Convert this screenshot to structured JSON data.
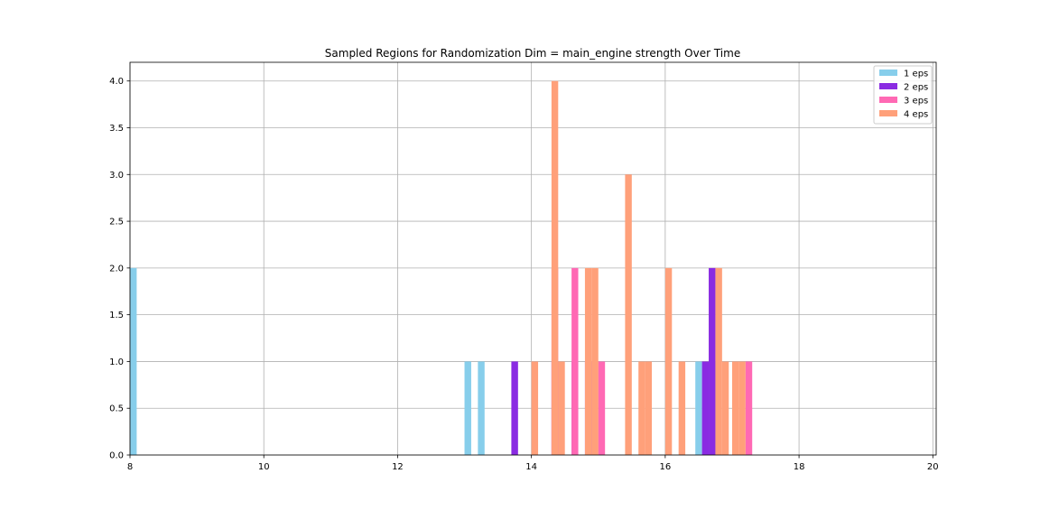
{
  "chart_data": {
    "type": "bar",
    "title": "Sampled Regions for Randomization Dim = main_engine strength Over Time",
    "xlabel": "",
    "ylabel": "",
    "xlim": [
      8,
      20.05
    ],
    "ylim": [
      0,
      4.2
    ],
    "x_ticks": [
      "8",
      "10",
      "12",
      "14",
      "16",
      "18",
      "20"
    ],
    "y_ticks": [
      "0.0",
      "0.5",
      "1.0",
      "1.5",
      "2.0",
      "2.5",
      "3.0",
      "3.5",
      "4.0"
    ],
    "grid": true,
    "legend_placement": "top-right",
    "bin_width": 0.1,
    "series": [
      {
        "name": "1 eps",
        "color": "#87CEEB",
        "bars": [
          {
            "x": 8.0,
            "value": 2
          },
          {
            "x": 13.0,
            "value": 1
          },
          {
            "x": 13.2,
            "value": 1
          },
          {
            "x": 16.45,
            "value": 1
          },
          {
            "x": 16.65,
            "value": 1
          }
        ]
      },
      {
        "name": "2 eps",
        "color": "#8A2BE2",
        "bars": [
          {
            "x": 13.7,
            "value": 1
          },
          {
            "x": 14.3,
            "value": 1
          },
          {
            "x": 14.6,
            "value": 1
          },
          {
            "x": 14.8,
            "value": 1
          },
          {
            "x": 16.55,
            "value": 1
          },
          {
            "x": 16.65,
            "value": 2
          }
        ]
      },
      {
        "name": "3 eps",
        "color": "#FF69B4",
        "bars": [
          {
            "x": 14.3,
            "value": 2
          },
          {
            "x": 14.6,
            "value": 2
          },
          {
            "x": 14.9,
            "value": 1
          },
          {
            "x": 15.0,
            "value": 1
          },
          {
            "x": 17.2,
            "value": 1
          }
        ]
      },
      {
        "name": "4 eps",
        "color": "#FFA07A",
        "bars": [
          {
            "x": 14.0,
            "value": 1
          },
          {
            "x": 14.3,
            "value": 4
          },
          {
            "x": 14.4,
            "value": 1
          },
          {
            "x": 14.8,
            "value": 2
          },
          {
            "x": 14.9,
            "value": 2
          },
          {
            "x": 15.4,
            "value": 3
          },
          {
            "x": 15.6,
            "value": 1
          },
          {
            "x": 15.7,
            "value": 1
          },
          {
            "x": 16.0,
            "value": 2
          },
          {
            "x": 16.2,
            "value": 1
          },
          {
            "x": 16.75,
            "value": 2
          },
          {
            "x": 16.85,
            "value": 1
          },
          {
            "x": 17.0,
            "value": 1
          },
          {
            "x": 17.1,
            "value": 1
          }
        ]
      }
    ]
  }
}
